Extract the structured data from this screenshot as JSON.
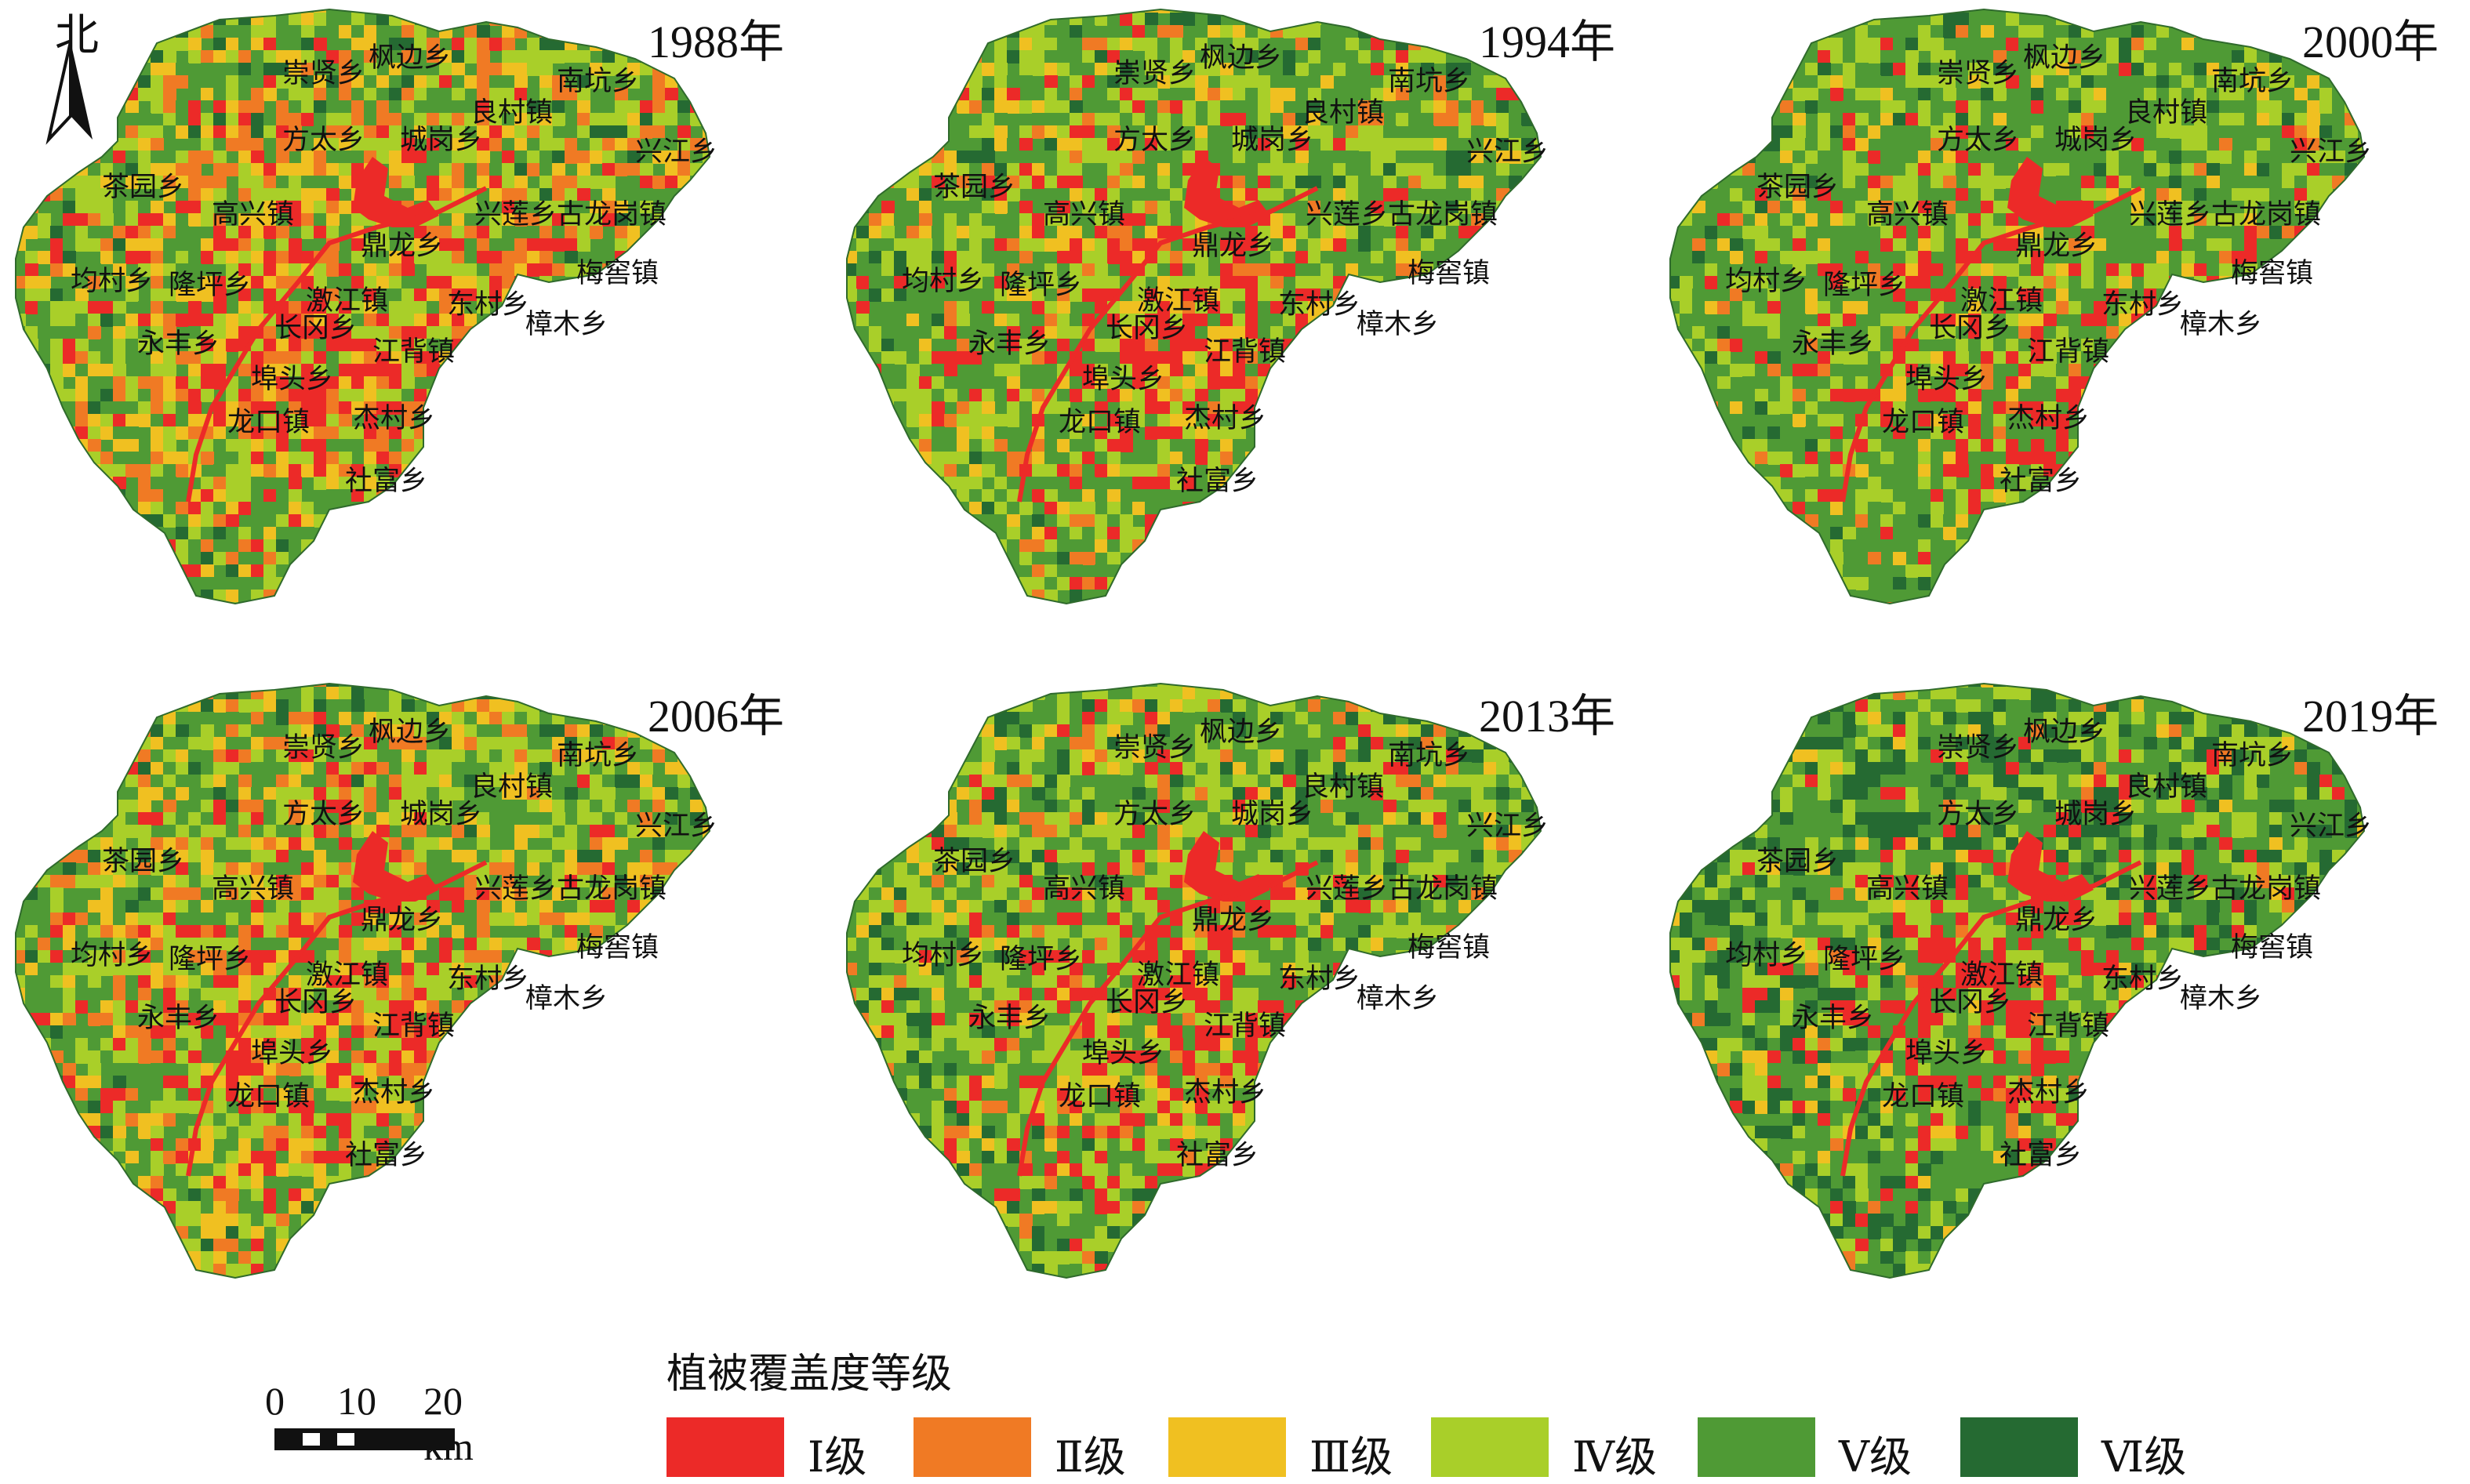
{
  "north_label": "北",
  "colors": {
    "I": "#ec2a28",
    "II": "#f07a24",
    "III": "#f0c021",
    "IV": "#a9cf29",
    "V": "#4f9a35",
    "VI": "#256a32"
  },
  "panels": [
    {
      "year": "1988年"
    },
    {
      "year": "1994年"
    },
    {
      "year": "2000年"
    },
    {
      "year": "2006年"
    },
    {
      "year": "2013年"
    },
    {
      "year": "2019年"
    }
  ],
  "towns": [
    "枫边乡",
    "崇贤乡",
    "南坑乡",
    "良村镇",
    "兴江乡",
    "方太乡",
    "城岗乡",
    "茶园乡",
    "高兴镇",
    "兴莲乡",
    "古龙岗镇",
    "鼎龙乡",
    "梅窖镇",
    "均村乡",
    "隆坪乡",
    "激江镇",
    "东村乡",
    "樟木乡",
    "永丰乡",
    "长冈乡",
    "江背镇",
    "埠头乡",
    "龙口镇",
    "杰村乡",
    "社富乡"
  ],
  "scalebar": {
    "ticks": [
      "0",
      "10",
      "20 km"
    ]
  },
  "legend": {
    "title": "植被覆盖度等级",
    "items": [
      {
        "label": "Ⅰ级",
        "color": "#ec2a28"
      },
      {
        "label": "Ⅱ级",
        "color": "#f07a24"
      },
      {
        "label": "Ⅲ级",
        "color": "#f0c021"
      },
      {
        "label": "Ⅳ级",
        "color": "#a9cf29"
      },
      {
        "label": "Ⅴ级",
        "color": "#4f9a35"
      },
      {
        "label": "Ⅵ级",
        "color": "#256a32"
      }
    ]
  }
}
